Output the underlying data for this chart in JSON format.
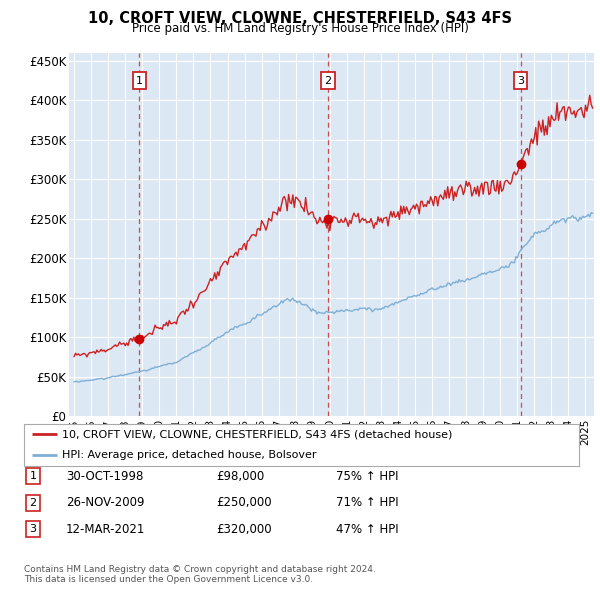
{
  "title": "10, CROFT VIEW, CLOWNE, CHESTERFIELD, S43 4FS",
  "subtitle": "Price paid vs. HM Land Registry's House Price Index (HPI)",
  "y_ticks": [
    0,
    50000,
    100000,
    150000,
    200000,
    250000,
    300000,
    350000,
    400000,
    450000
  ],
  "y_tick_labels": [
    "£0",
    "£50K",
    "£100K",
    "£150K",
    "£200K",
    "£250K",
    "£300K",
    "£350K",
    "£400K",
    "£450K"
  ],
  "ylim": [
    0,
    460000
  ],
  "x_start_year": 1995,
  "x_end_year": 2025,
  "plot_bg_color": "#dde8f5",
  "grid_color": "#ffffff",
  "hpi_color": "#7fafd4",
  "price_color": "#cc2222",
  "sale_dot_color": "#cc0000",
  "transaction_line_color": "#cc3333",
  "sale_years": [
    1998.83,
    2009.9,
    2021.19
  ],
  "sale_prices": [
    98000,
    250000,
    320000
  ],
  "sale_labels": [
    "1",
    "2",
    "3"
  ],
  "legend_entries": [
    "10, CROFT VIEW, CLOWNE, CHESTERFIELD, S43 4FS (detached house)",
    "HPI: Average price, detached house, Bolsover"
  ],
  "table_rows": [
    [
      "1",
      "30-OCT-1998",
      "£98,000",
      "75% ↑ HPI"
    ],
    [
      "2",
      "26-NOV-2009",
      "£250,000",
      "71% ↑ HPI"
    ],
    [
      "3",
      "12-MAR-2021",
      "£320,000",
      "47% ↑ HPI"
    ]
  ],
  "footnote": "Contains HM Land Registry data © Crown copyright and database right 2024.\nThis data is licensed under the Open Government Licence v3.0."
}
